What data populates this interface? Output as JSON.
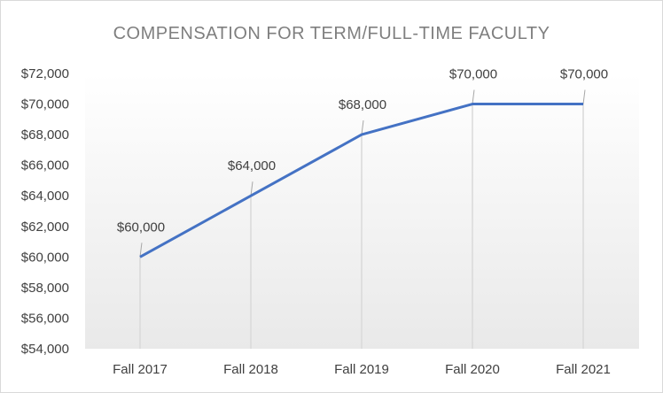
{
  "chart_data": {
    "type": "line",
    "title": "COMPENSATION  FOR TERM/FULL-TIME  FACULTY",
    "xlabel": "",
    "ylabel": "",
    "categories": [
      "Fall 2017",
      "Fall 2018",
      "Fall 2019",
      "Fall 2020",
      "Fall 2021"
    ],
    "series": [
      {
        "values": [
          60000,
          64000,
          68000,
          70000,
          70000
        ]
      }
    ],
    "data_labels": [
      "$60,000",
      "$64,000",
      "$68,000",
      "$70,000",
      "$70,000"
    ],
    "ylim": [
      54000,
      72000
    ],
    "y_ticks": [
      {
        "value": 72000,
        "label": "$72,000"
      },
      {
        "value": 70000,
        "label": "$70,000"
      },
      {
        "value": 68000,
        "label": "$68,000"
      },
      {
        "value": 66000,
        "label": "$66,000"
      },
      {
        "value": 64000,
        "label": "$64,000"
      },
      {
        "value": 62000,
        "label": "$62,000"
      },
      {
        "value": 60000,
        "label": "$60,000"
      },
      {
        "value": 58000,
        "label": "$58,000"
      },
      {
        "value": 56000,
        "label": "$56,000"
      },
      {
        "value": 54000,
        "label": "$54,000"
      }
    ],
    "grid": "vertical drop lines",
    "legend": "none",
    "colors": {
      "line": "#4472c4",
      "drop_line": "#d9d9d9",
      "plot_gradient_top": "#ffffff",
      "plot_gradient_bottom": "#e9e9e9",
      "text": "#404040",
      "title": "#7f7f7f"
    }
  }
}
